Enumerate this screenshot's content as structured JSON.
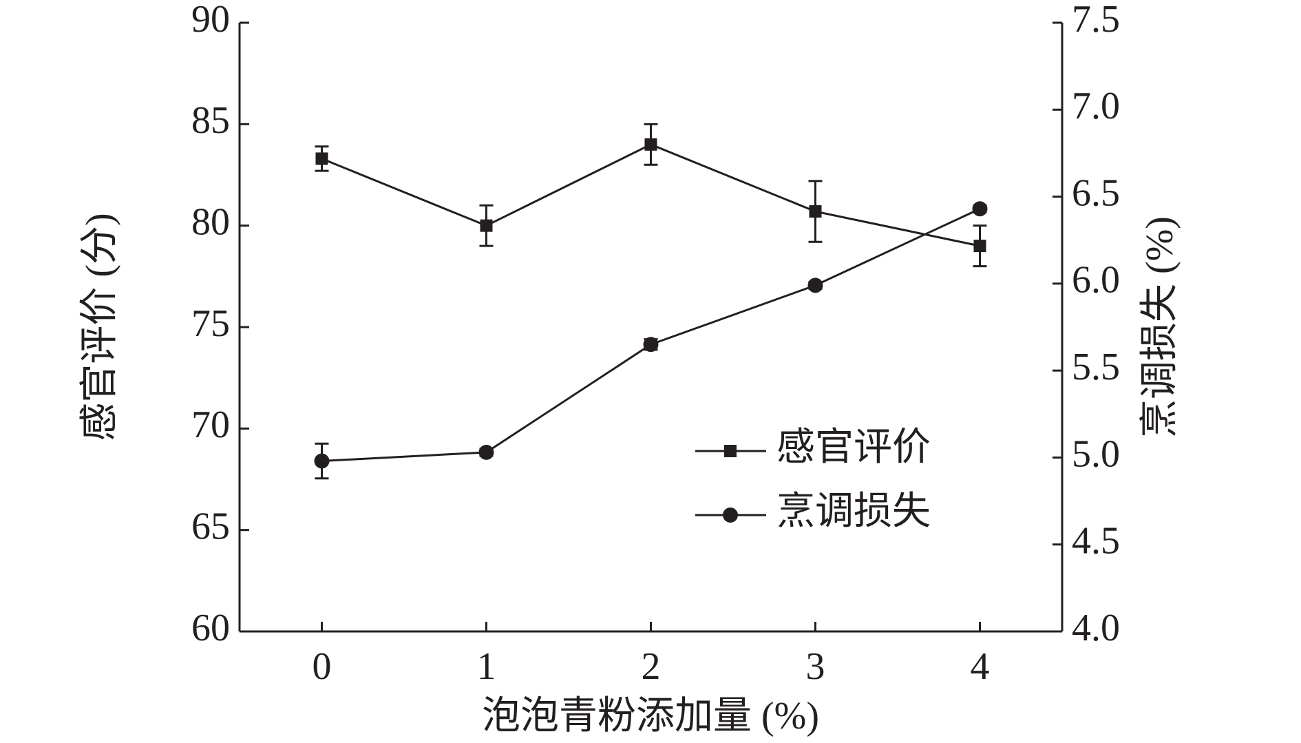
{
  "chart_data": {
    "type": "line",
    "x_label": "泡泡青粉添加量 (%)",
    "y_label": "感官评价 (分)",
    "y2_label": "烹调损失 (%)",
    "x": [
      0,
      1,
      2,
      3,
      4
    ],
    "xlim": [
      -0.5,
      4.5
    ],
    "xticks": [
      0,
      1,
      2,
      3,
      4
    ],
    "ylim": [
      60,
      90
    ],
    "yticks": [
      60,
      65,
      70,
      75,
      80,
      85,
      90
    ],
    "y2lim": [
      4,
      7.5
    ],
    "y2ticks": [
      {
        "value": 4,
        "label": "4.0"
      },
      4.5,
      {
        "value": 5,
        "label": "5.0"
      },
      5.5,
      {
        "value": 6,
        "label": "6.0"
      },
      6.5,
      {
        "value": 7,
        "label": "7.0"
      },
      7.5
    ],
    "legend": "lower right",
    "series": [
      {
        "name": "感官评价",
        "color": "#231f20",
        "marker": "square",
        "values": [
          83.3,
          80,
          84,
          80.7,
          79
        ],
        "errors": [
          0.6,
          1.0,
          1.0,
          1.5,
          1.0
        ]
      },
      {
        "name": "烹调损失",
        "color": "#231f20",
        "marker": "circle",
        "axis": "y2",
        "values": [
          4.98,
          5.03,
          5.65,
          5.99,
          6.43
        ],
        "errors": [
          0.1,
          0.02,
          0.03,
          0.02,
          0.02
        ]
      }
    ]
  }
}
